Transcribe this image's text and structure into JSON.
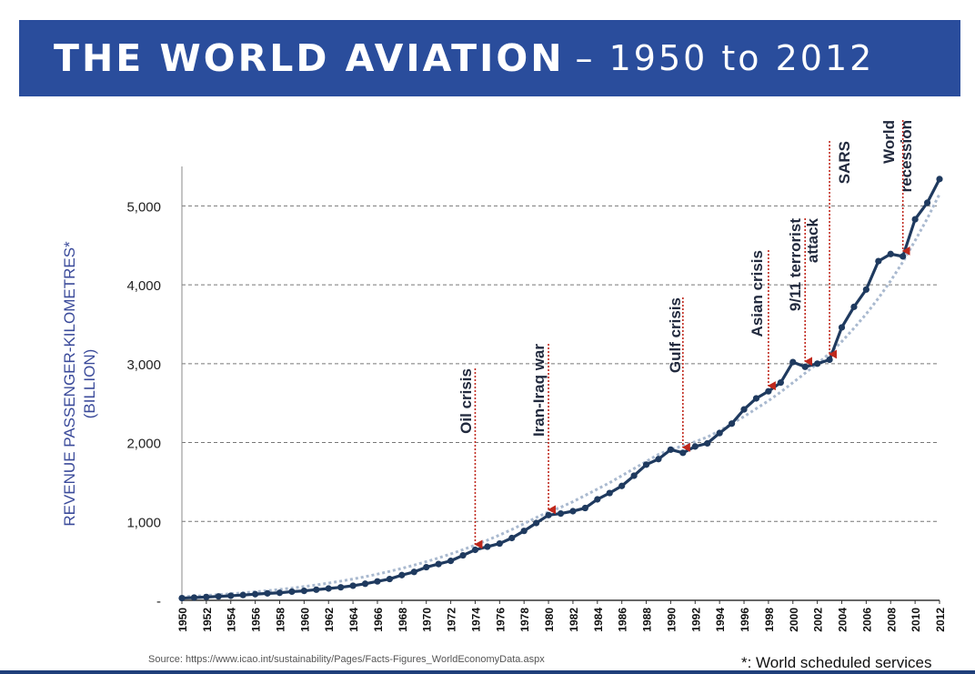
{
  "title": {
    "main": "THE WORLD AVIATION",
    "sub": "– 1950 to 2012"
  },
  "colors": {
    "title_bg": "#2a4d9c",
    "line": "#1f3a5f",
    "trend": "#a9b9cf",
    "marker": "#c0281c",
    "axis_label": "#3a4a9a"
  },
  "chart_data": {
    "type": "line",
    "ylabel_line1": "REVENUE PASSENGER-KILOMETRES*",
    "ylabel_line2": "(BILLION)",
    "ylim": [
      0,
      5500
    ],
    "yticks": [
      0,
      1000,
      2000,
      3000,
      4000,
      5000
    ],
    "ytick_labels": [
      "-",
      "1,000",
      "2,000",
      "3,000",
      "4,000",
      "5,000"
    ],
    "grid": "horizontal dashed",
    "xlim": [
      1950,
      2012
    ],
    "xtick_labels": [
      "1950",
      "1952",
      "1954",
      "1956",
      "1958",
      "1960",
      "1962",
      "1964",
      "1966",
      "1968",
      "1970",
      "1972",
      "1974",
      "1976",
      "1978",
      "1980",
      "1982",
      "1984",
      "1986",
      "1988",
      "1990",
      "1992",
      "1994",
      "1996",
      "1998",
      "2000",
      "2002",
      "2004",
      "2006",
      "2008",
      "2010",
      "2012"
    ],
    "x": [
      1950,
      1951,
      1952,
      1953,
      1954,
      1955,
      1956,
      1957,
      1958,
      1959,
      1960,
      1961,
      1962,
      1963,
      1964,
      1965,
      1966,
      1967,
      1968,
      1969,
      1970,
      1971,
      1972,
      1973,
      1974,
      1975,
      1976,
      1977,
      1978,
      1979,
      1980,
      1981,
      1982,
      1983,
      1984,
      1985,
      1986,
      1987,
      1988,
      1989,
      1990,
      1991,
      1992,
      1993,
      1994,
      1995,
      1996,
      1997,
      1998,
      1999,
      2000,
      2001,
      2002,
      2003,
      2004,
      2005,
      2006,
      2007,
      2008,
      2009,
      2010,
      2011,
      2012
    ],
    "series": [
      {
        "values": [
          28,
          35,
          42,
          50,
          58,
          67,
          78,
          88,
          95,
          110,
          120,
          135,
          150,
          165,
          185,
          210,
          240,
          270,
          320,
          360,
          420,
          460,
          500,
          570,
          640,
          680,
          720,
          790,
          880,
          980,
          1080,
          1100,
          1130,
          1170,
          1280,
          1360,
          1450,
          1580,
          1720,
          1790,
          1910,
          1870,
          1950,
          1990,
          2120,
          2240,
          2420,
          2560,
          2650,
          2760,
          3020,
          2960,
          3000,
          3050,
          3460,
          3720,
          3940,
          4300,
          4390,
          4360,
          4830,
          5040,
          5340
        ]
      }
    ],
    "trend": [
      45,
      53,
      62,
      72,
      83,
      95,
      108,
      122,
      138,
      155,
      174,
      195,
      218,
      243,
      270,
      300,
      332,
      367,
      405,
      446,
      490,
      537,
      588,
      642,
      700,
      762,
      828,
      898,
      972,
      1050,
      1120,
      1180,
      1250,
      1330,
      1410,
      1490,
      1580,
      1670,
      1760,
      1850,
      1910,
      1960,
      2010,
      2070,
      2150,
      2240,
      2330,
      2430,
      2530,
      2640,
      2760,
      2880,
      3000,
      3130,
      3280,
      3450,
      3630,
      3830,
      4050,
      4290,
      4560,
      4840,
      5150
    ],
    "annotations": [
      {
        "label": "Oil crisis",
        "year": 1974
      },
      {
        "label": "Iran-Iraq war",
        "year": 1980
      },
      {
        "label": "Gulf crisis",
        "year": 1991
      },
      {
        "label": "Asian crisis",
        "year": 1998
      },
      {
        "label": "9/11 terrorist attack",
        "year": 2001
      },
      {
        "label": "SARS",
        "year": 2003
      },
      {
        "label": "World recession",
        "year": 2009
      }
    ]
  },
  "source": "Source: https://www.icao.int/sustainability/Pages/Facts-Figures_WorldEconomyData.aspx",
  "footnote": "*: World scheduled services"
}
